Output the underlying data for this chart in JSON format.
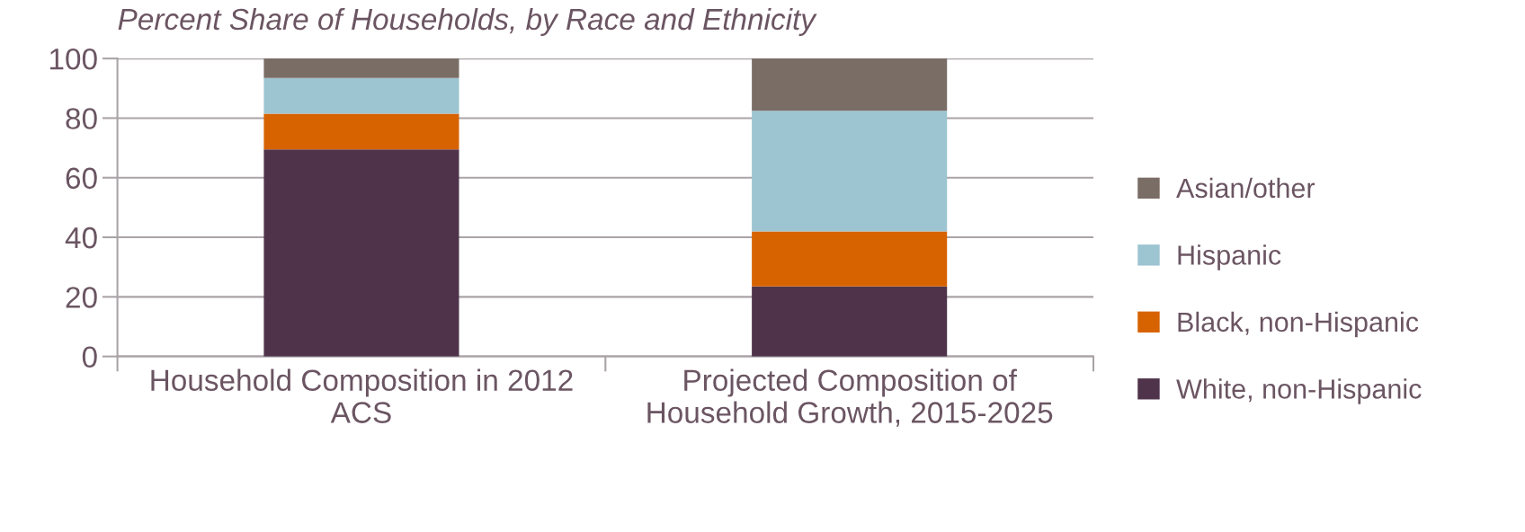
{
  "chart_data": {
    "type": "bar",
    "stacked": true,
    "title": "Percent Share of Households, by Race and Ethnicity",
    "categories": [
      "Household Composition in 2012 ACS",
      "Projected Composition of Household Growth, 2015-2025"
    ],
    "series": [
      {
        "name": "White, non-Hispanic",
        "color": "#4f334b",
        "values": [
          69.5,
          23.5
        ]
      },
      {
        "name": "Black, non-Hispanic",
        "color": "#d76300",
        "values": [
          12,
          18.5
        ]
      },
      {
        "name": "Hispanic",
        "color": "#9cc4d1",
        "values": [
          12,
          40.5
        ]
      },
      {
        "name": "Asian/other",
        "color": "#7a6d65",
        "values": [
          6.5,
          17.5
        ]
      }
    ],
    "ylim": [
      0,
      100
    ],
    "yticks": [
      0,
      20,
      40,
      60,
      80,
      100
    ],
    "grid": "y",
    "legend": "right"
  }
}
